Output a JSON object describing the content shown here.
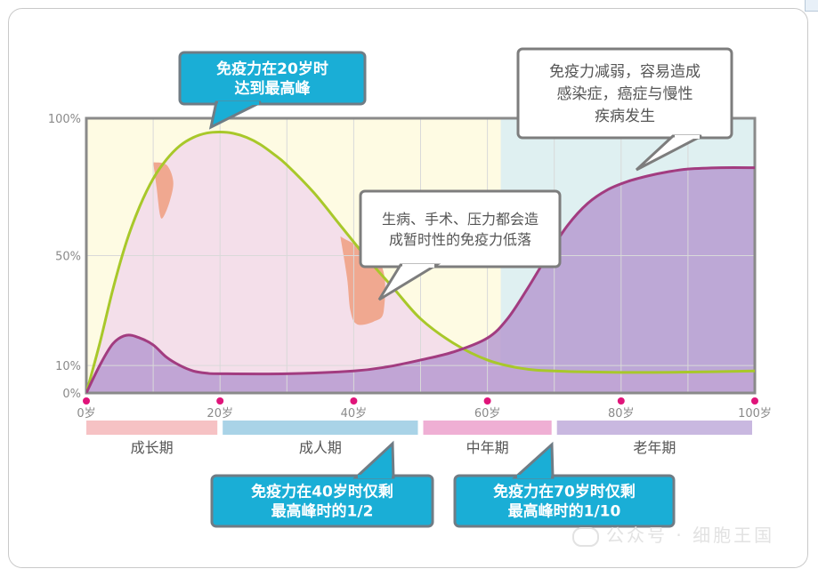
{
  "chart_data": {
    "type": "area",
    "x_unit_suffix": "岁",
    "x_ticks": [
      0,
      20,
      40,
      60,
      80,
      100
    ],
    "y_ticks": [
      "100%",
      "50%",
      "10%",
      "0%"
    ],
    "y_tick_values": [
      100,
      50,
      10,
      0
    ],
    "xlim": [
      0,
      100
    ],
    "ylim": [
      0,
      100
    ],
    "grid": true,
    "series": [
      {
        "color": "#a8c82a",
        "fill": "#f3dcea",
        "x": [
          0,
          2,
          4,
          6,
          8,
          10,
          12,
          14,
          16,
          18,
          20,
          22,
          24,
          26,
          28,
          30,
          34,
          38,
          42,
          46,
          50,
          55,
          60,
          65,
          70,
          80,
          90,
          100
        ],
        "y": [
          0,
          18,
          38,
          55,
          68,
          78,
          85,
          90,
          93,
          94.6,
          95,
          94.5,
          93,
          90.5,
          87,
          83,
          73,
          61,
          49,
          38,
          27,
          18,
          12,
          9,
          8,
          7.5,
          7.6,
          8
        ]
      },
      {
        "color": "#a23c80",
        "fill": "#b79bd1",
        "x": [
          0,
          2,
          4,
          6,
          8,
          10,
          12,
          14,
          16,
          18,
          20,
          30,
          40,
          45,
          50,
          55,
          60,
          63,
          66,
          69,
          72,
          75,
          78,
          81,
          84,
          87,
          90,
          95,
          100
        ],
        "y": [
          0,
          10,
          18,
          21,
          20,
          17.5,
          13,
          10,
          8,
          7.2,
          7,
          7,
          8,
          9.5,
          12,
          15,
          20,
          27,
          38,
          50,
          61,
          69,
          74,
          77,
          79,
          80.5,
          81.5,
          82,
          82
        ]
      }
    ],
    "dips": [
      {
        "x": [
          10,
          12,
          13,
          12.5,
          11.5,
          11,
          10.5
        ],
        "y": [
          84,
          83,
          77,
          70,
          64,
          65,
          75
        ],
        "color": "#f0a890"
      },
      {
        "x": [
          38,
          44,
          44.5,
          43,
          40.5,
          39.5,
          39
        ],
        "y": [
          57,
          47,
          30,
          26,
          25,
          30,
          42
        ],
        "color": "#f0a890"
      }
    ],
    "periods": [
      {
        "label": "成长期",
        "from": 0,
        "to": 20,
        "color": "#f6c2c4"
      },
      {
        "label": "成人期",
        "from": 20,
        "to": 50,
        "color": "#a9d3e7"
      },
      {
        "label": "中年期",
        "from": 50,
        "to": 70,
        "color": "#efafd4"
      },
      {
        "label": "老年期",
        "from": 70,
        "to": 100,
        "color": "#c9b8e0"
      }
    ],
    "background_regions": [
      {
        "from": 0,
        "to": 100,
        "color": "#fefbe3"
      },
      {
        "from": 62,
        "to": 100,
        "color": "#dff0f1"
      }
    ],
    "callouts": [
      {
        "lines": [
          "免疫力在20岁时",
          "达到最高峰"
        ],
        "style": "blue"
      },
      {
        "lines": [
          "免疫力减弱，容易造成",
          "感染症，癌症与慢性",
          "疾病发生"
        ],
        "style": "white"
      },
      {
        "lines": [
          "生病、手术、压力都会造",
          "成暂时性的免疫力低落"
        ],
        "style": "white"
      },
      {
        "lines": [
          "免疫力在40岁时仅剩",
          "最高峰时的1/2"
        ],
        "style": "blue"
      },
      {
        "lines": [
          "免疫力在70岁时仅剩",
          "最高峰时的1/10"
        ],
        "style": "blue"
      }
    ]
  },
  "watermark": "公众号 · 细胞王国"
}
